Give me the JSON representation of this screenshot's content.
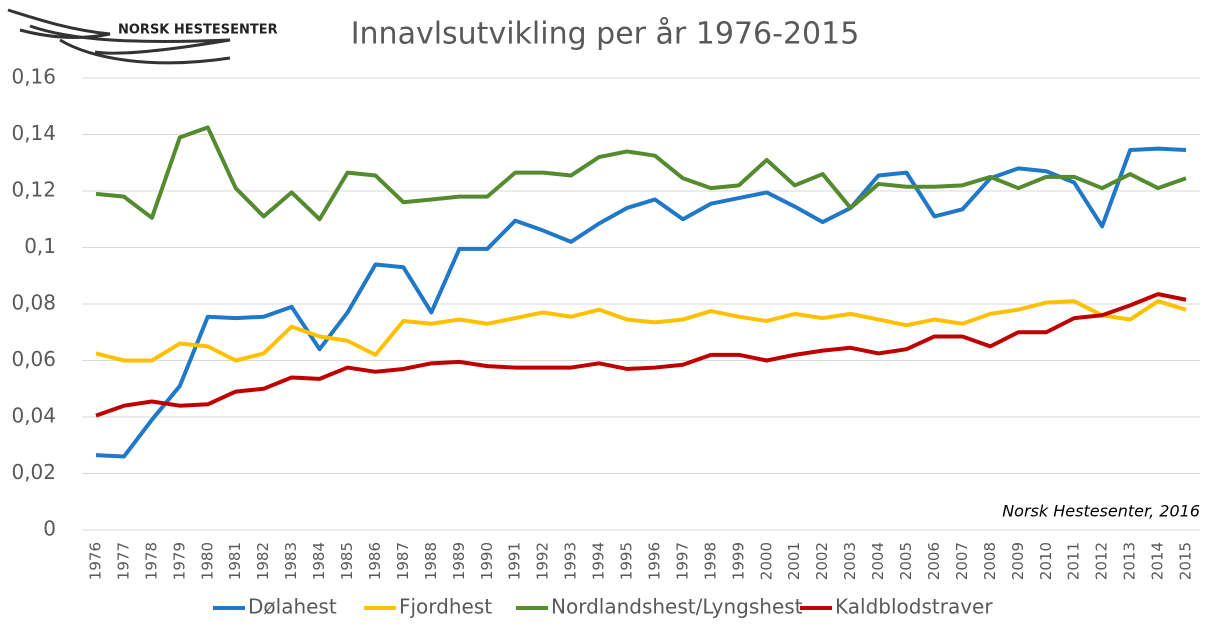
{
  "chart_data": {
    "type": "line",
    "title": "Innavlsutvikling per år 1976-2015",
    "logo_text": "NORSK HESTESENTER",
    "annotation": "Norsk Hestesenter, 2016",
    "categories": [
      "1976",
      "1977",
      "1978",
      "1979",
      "1980",
      "1981",
      "1982",
      "1983",
      "1984",
      "1985",
      "1986",
      "1987",
      "1988",
      "1989",
      "1990",
      "1991",
      "1992",
      "1993",
      "1994",
      "1995",
      "1996",
      "1997",
      "1998",
      "1999",
      "2000",
      "2001",
      "2002",
      "2003",
      "2004",
      "2005",
      "2006",
      "2007",
      "2008",
      "2009",
      "2010",
      "2011",
      "2012",
      "2013",
      "2014",
      "2015"
    ],
    "series": [
      {
        "name": "Dølahest",
        "color": "#1f78c8",
        "values": [
          0.0265,
          0.026,
          0.039,
          0.051,
          0.0755,
          0.075,
          0.0755,
          0.079,
          0.064,
          0.077,
          0.094,
          0.093,
          0.077,
          0.0995,
          0.0995,
          0.1095,
          0.106,
          0.102,
          0.1085,
          0.114,
          0.117,
          0.11,
          0.1155,
          0.1175,
          0.1195,
          0.1145,
          0.109,
          0.114,
          0.1255,
          0.1265,
          0.111,
          0.1135,
          0.1245,
          0.128,
          0.127,
          0.123,
          0.1075,
          0.1345,
          0.135,
          0.1345
        ]
      },
      {
        "name": "Fjordhest",
        "color": "#ffc000",
        "values": [
          0.0625,
          0.06,
          0.06,
          0.066,
          0.065,
          0.06,
          0.0625,
          0.072,
          0.0685,
          0.067,
          0.062,
          0.074,
          0.073,
          0.0745,
          0.073,
          0.075,
          0.077,
          0.0755,
          0.078,
          0.0745,
          0.0735,
          0.0745,
          0.0775,
          0.0755,
          0.074,
          0.0765,
          0.075,
          0.0765,
          0.0745,
          0.0725,
          0.0745,
          0.073,
          0.0765,
          0.078,
          0.0805,
          0.081,
          0.076,
          0.0745,
          0.081,
          0.078
        ]
      },
      {
        "name": "Nordlandshest/Lyngshest",
        "color": "#548b2e",
        "values": [
          0.119,
          0.118,
          0.1105,
          0.139,
          0.1425,
          0.121,
          0.111,
          0.1195,
          0.11,
          0.1265,
          0.1255,
          0.116,
          0.117,
          0.118,
          0.118,
          0.1265,
          0.1265,
          0.1255,
          0.132,
          0.134,
          0.1325,
          0.1245,
          0.121,
          0.122,
          0.131,
          0.122,
          0.126,
          0.114,
          0.1225,
          0.1215,
          0.1215,
          0.122,
          0.125,
          0.121,
          0.125,
          0.125,
          0.121,
          0.126,
          0.121,
          0.1245
        ]
      },
      {
        "name": "Kaldblodstraver",
        "color": "#c00000",
        "values": [
          0.0405,
          0.044,
          0.0455,
          0.044,
          0.0445,
          0.049,
          0.05,
          0.054,
          0.0535,
          0.0575,
          0.056,
          0.057,
          0.059,
          0.0595,
          0.058,
          0.0575,
          0.0575,
          0.0575,
          0.059,
          0.057,
          0.0575,
          0.0585,
          0.062,
          0.062,
          0.06,
          0.062,
          0.0635,
          0.0645,
          0.0625,
          0.064,
          0.0685,
          0.0685,
          0.065,
          0.07,
          0.07,
          0.075,
          0.076,
          0.0795,
          0.0835,
          0.0815
        ]
      }
    ],
    "ylim": [
      0,
      0.16
    ],
    "yticks": [
      0,
      {
        "value": 0.02,
        "label": "0,02"
      },
      {
        "value": 0.04,
        "label": "0,04"
      },
      {
        "value": 0.06,
        "label": "0,06"
      },
      {
        "value": 0.08,
        "label": "0,08"
      },
      {
        "value": 0.1,
        "label": "0,1"
      },
      {
        "value": 0.12,
        "label": "0,12"
      },
      {
        "value": 0.14,
        "label": "0,14"
      },
      {
        "value": 0.16,
        "label": "0,16"
      }
    ],
    "grid": true
  }
}
